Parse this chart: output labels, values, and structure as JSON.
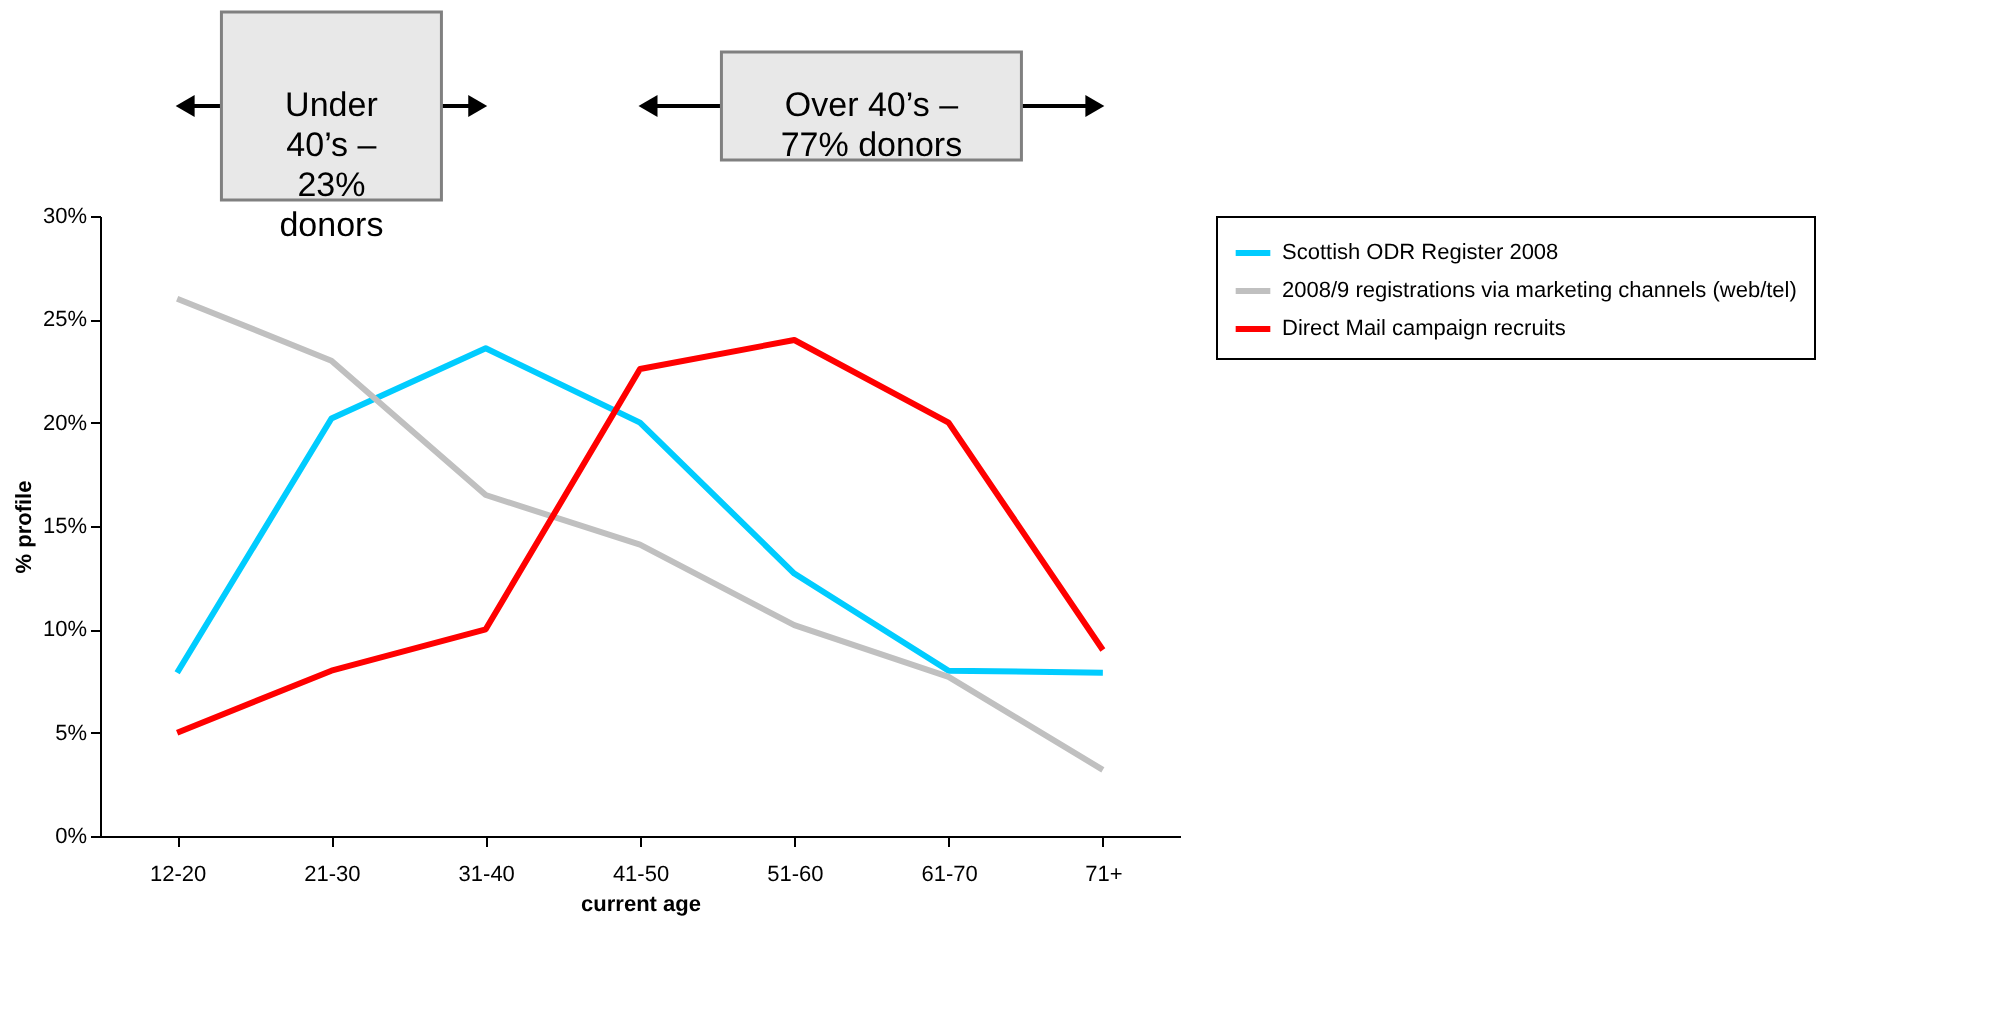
{
  "chart_data": {
    "type": "line",
    "xlabel": "current age",
    "ylabel": "% profile",
    "categories": [
      "12-20",
      "21-30",
      "31-40",
      "41-50",
      "51-60",
      "61-70",
      "71+"
    ],
    "series": [
      {
        "name": "Scottish ODR Register 2008",
        "color": "#00ccff",
        "values": [
          7.9,
          20.2,
          23.6,
          20.0,
          12.7,
          8.0,
          7.9
        ]
      },
      {
        "name": "2008/9 registrations via marketing channels (web/tel)",
        "color": "#c0c0c0",
        "values": [
          26.0,
          23.0,
          16.5,
          14.1,
          10.2,
          7.7,
          3.2
        ]
      },
      {
        "name": "Direct Mail campaign recruits",
        "color": "#ff0000",
        "values": [
          5.0,
          8.0,
          10.0,
          22.6,
          24.0,
          20.0,
          9.0
        ]
      }
    ],
    "ylim": [
      0,
      30
    ],
    "yticks": [
      {
        "value": 0,
        "label": "0%"
      },
      {
        "value": 5,
        "label": "5%"
      },
      {
        "value": 10,
        "label": "10%"
      },
      {
        "value": 15,
        "label": "15%"
      },
      {
        "value": 20,
        "label": "20%"
      },
      {
        "value": 25,
        "label": "25%"
      },
      {
        "value": 30,
        "label": "30%"
      }
    ],
    "annotations": [
      "Under 40’s – 23% donors",
      "Over 40’s – 77% donors"
    ],
    "grid": false,
    "legend": "right",
    "marker": "none",
    "line_style": "solid"
  }
}
